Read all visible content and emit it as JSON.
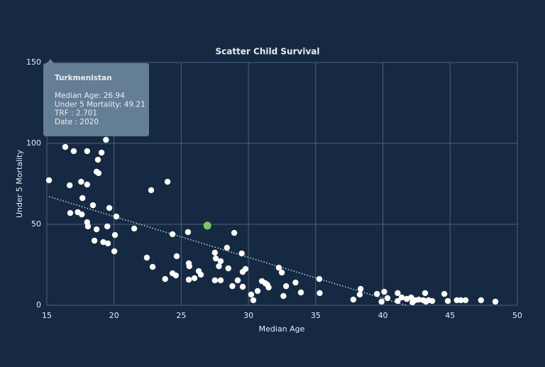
{
  "chart_data": {
    "type": "scatter",
    "title": "Scatter Child Survival",
    "x_label": "Median Age",
    "y_label": "Under 5 Mortality",
    "xlim": [
      15,
      50
    ],
    "xticks": [
      15,
      20,
      25,
      30,
      35,
      40,
      45,
      50
    ],
    "ylim": [
      0,
      150
    ],
    "yticks": [
      0,
      50,
      100,
      150
    ],
    "grid": true,
    "color": "#ffffff",
    "x": [
      15.16,
      16.37,
      17.0,
      16.7,
      16.74,
      17.3,
      17.6,
      17.55,
      17.65,
      18.0,
      18.0,
      18.0,
      18.06,
      18.43,
      18.54,
      18.7,
      18.7,
      18.8,
      18.85,
      19.07,
      19.4,
      19.2,
      19.54,
      19.5,
      19.65,
      20.02,
      20.07,
      20.17,
      21.5,
      22.44,
      22.76,
      22.87,
      23.8,
      23.98,
      24.35,
      24.35,
      24.6,
      24.66,
      25.5,
      25.56,
      25.6,
      25.56,
      25.98,
      26.3,
      26.46,
      27.5,
      27.57,
      27.5,
      27.8,
      27.93,
      27.93,
      28.4,
      28.5,
      28.8,
      28.94,
      29.2,
      29.5,
      29.57,
      29.57,
      29.78,
      30.2,
      30.36,
      30.68,
      31.0,
      31.25,
      31.5,
      31.4,
      32.26,
      32.48,
      32.6,
      32.8,
      33.5,
      33.9,
      35.27,
      35.3,
      37.8,
      38.28,
      38.34,
      39.56,
      39.9,
      40.1,
      40.34,
      41.1,
      41.1,
      41.4,
      41.77,
      42.1,
      42.2,
      42.4,
      42.67,
      43.0,
      43.2,
      43.14,
      43.4,
      43.67,
      44.57,
      44.83,
      45.5,
      45.8,
      46.15,
      47.3,
      48.37
    ],
    "y": [
      77.2,
      97.8,
      95.2,
      74.1,
      57.0,
      57.5,
      56.1,
      76.3,
      66.2,
      74.6,
      95.2,
      51.3,
      48.7,
      61.8,
      39.9,
      46.9,
      82.5,
      89.9,
      81.6,
      94.3,
      102.2,
      39.0,
      38.2,
      48.7,
      60.1,
      33.3,
      43.4,
      54.8,
      47.4,
      29.4,
      71.1,
      23.7,
      16.2,
      76.3,
      43.9,
      19.7,
      18.4,
      30.3,
      45.2,
      25.9,
      24.1,
      15.8,
      16.7,
      21.1,
      18.9,
      32.5,
      28.9,
      15.4,
      24.1,
      27.2,
      15.4,
      35.5,
      22.8,
      11.8,
      44.7,
      15.4,
      32.0,
      20.6,
      11.4,
      22.4,
      6.6,
      3.1,
      8.8,
      14.9,
      13.6,
      11.0,
      12.7,
      23.2,
      20.2,
      5.7,
      11.8,
      14.0,
      7.9,
      16.2,
      7.5,
      3.5,
      6.6,
      10.1,
      7.0,
      2.2,
      8.3,
      4.4,
      2.6,
      7.5,
      4.8,
      3.9,
      4.8,
      1.8,
      3.1,
      3.5,
      3.1,
      2.2,
      7.5,
      3.1,
      2.6,
      7.0,
      2.6,
      3.1,
      3.1,
      3.1,
      3.1,
      2.2
    ],
    "highlight": {
      "x": 26.94,
      "y": 49.21,
      "color": "#7cc85f"
    },
    "trendline": {
      "x": [
        15.16,
        41.7
      ],
      "y": [
        67.1,
        0
      ],
      "color": "#c9d3dd"
    },
    "tooltip": {
      "title": "Turkmenistan",
      "lines": [
        "Median Age: 26.94",
        "Under 5 Mortality: 49.21",
        "TRF : 2.701",
        "Date : 2020"
      ]
    }
  }
}
